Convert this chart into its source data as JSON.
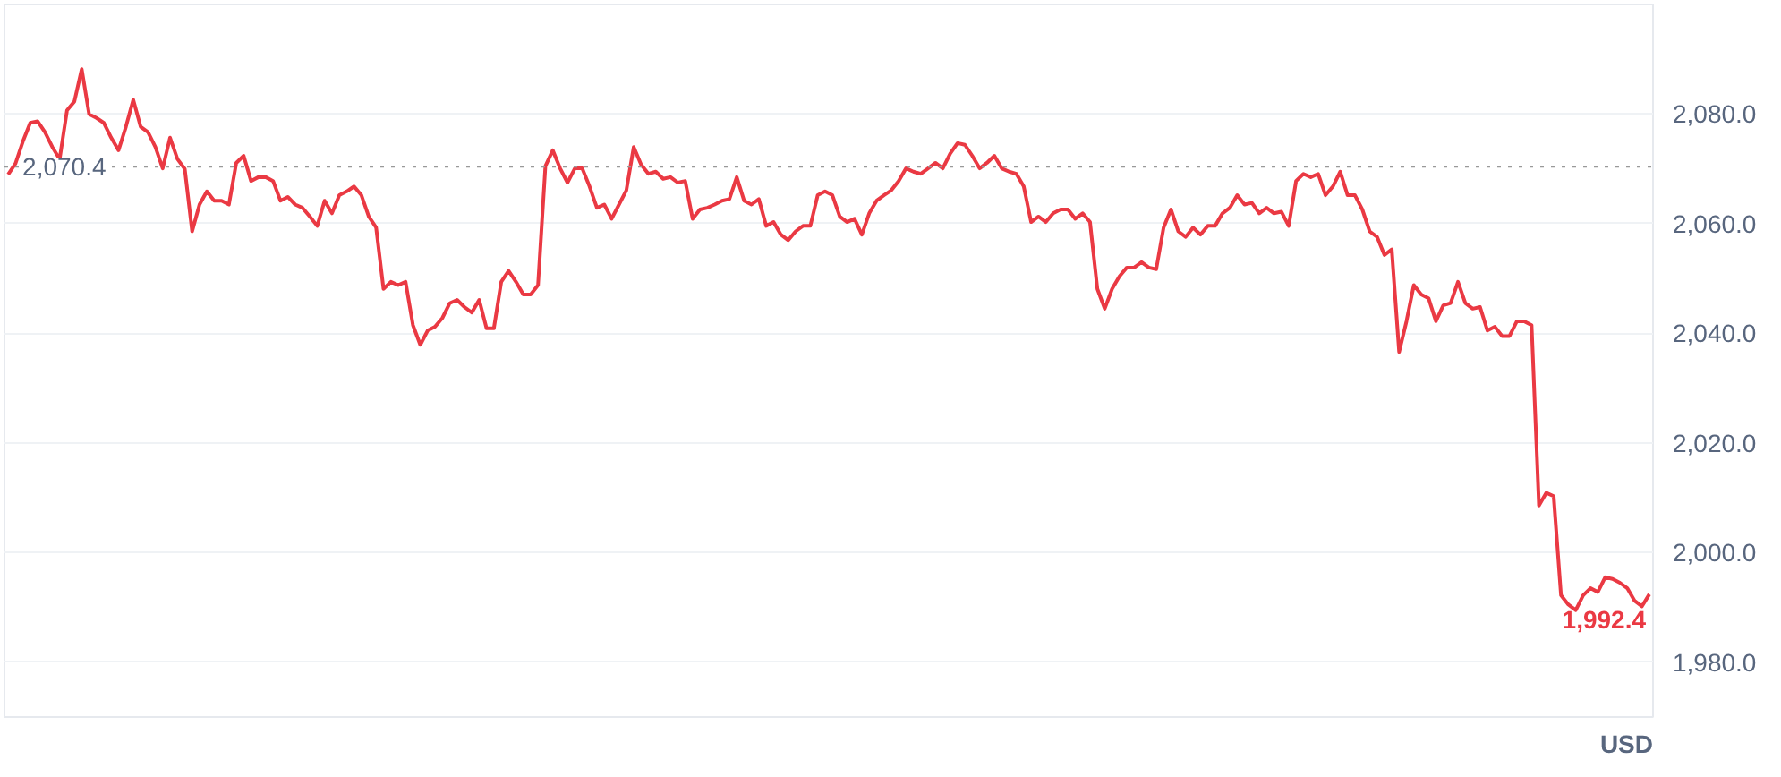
{
  "chart_data": {
    "type": "line",
    "categories": [
      null,
      null,
      null,
      null,
      null,
      null,
      null,
      null,
      null,
      null,
      null,
      null,
      null,
      null,
      null,
      null,
      null,
      null,
      null,
      null,
      null,
      null,
      null,
      null,
      null,
      null,
      null,
      null,
      null,
      null,
      null,
      null,
      null,
      null,
      null,
      null,
      null,
      null,
      null,
      null,
      null,
      null,
      null,
      null,
      null,
      null,
      null,
      null,
      null,
      null,
      null,
      null,
      null,
      null,
      null,
      null,
      null,
      null,
      null,
      null,
      null,
      null,
      null,
      null,
      null,
      null,
      null,
      null,
      null,
      null,
      null,
      null,
      null,
      null,
      null,
      null,
      null,
      null,
      null,
      null,
      null,
      null,
      null,
      null,
      null,
      null,
      null,
      null,
      null,
      null,
      null,
      null,
      null,
      null,
      null,
      null,
      null,
      null,
      null,
      null,
      null,
      null,
      null,
      null,
      null,
      null,
      null,
      null,
      null,
      null,
      null,
      null,
      null,
      null,
      null,
      null,
      null,
      null,
      null,
      null,
      null,
      null,
      null,
      null,
      null,
      null,
      null,
      null,
      null,
      null,
      null,
      null,
      null,
      null,
      null,
      null,
      null,
      null,
      null,
      null,
      null,
      null,
      null,
      null,
      null,
      null,
      null,
      null,
      null,
      null,
      null,
      null,
      null,
      null,
      null,
      null,
      null,
      null,
      null,
      null,
      null,
      null,
      null,
      null,
      null,
      null,
      null,
      null,
      null,
      null,
      null,
      null,
      null,
      null,
      null,
      null,
      null,
      null,
      null,
      null,
      null,
      null,
      null,
      null,
      null,
      null,
      null,
      null,
      null,
      null,
      null,
      null,
      null,
      null,
      null,
      null,
      null,
      null,
      null,
      null,
      null,
      null,
      null,
      null,
      null,
      null,
      null,
      null,
      null,
      null,
      null,
      null,
      null,
      null,
      null,
      null,
      null,
      null,
      null,
      null,
      null,
      null,
      null,
      null
    ],
    "series": [
      {
        "color": "#ea3943",
        "values": [
          2069,
          2071,
          2075,
          2078.4,
          2078.7,
          2076.7,
          2074,
          2071.8,
          2080.7,
          2082.3,
          2088.2,
          2080,
          2079.3,
          2078.4,
          2075.7,
          2073.4,
          2077.7,
          2082.6,
          2077.7,
          2076.7,
          2074,
          2070.1,
          2075.7,
          2071.8,
          2070,
          2058.6,
          2063.5,
          2065.9,
          2064.2,
          2064.2,
          2063.5,
          2071.1,
          2072.4,
          2067.8,
          2068.5,
          2068.5,
          2067.8,
          2064.2,
          2064.9,
          2063.5,
          2062.9,
          2061.3,
          2059.6,
          2064.2,
          2061.9,
          2065.2,
          2065.9,
          2066.8,
          2065.2,
          2061.3,
          2059.3,
          2048.1,
          2049.4,
          2048.8,
          2049.4,
          2041.5,
          2037.9,
          2040.5,
          2041.2,
          2042.8,
          2045.5,
          2046.1,
          2044.8,
          2043.8,
          2046.1,
          2040.9,
          2040.9,
          2049.4,
          2051.4,
          2049.4,
          2047.1,
          2047.1,
          2048.8,
          2070.5,
          2073.4,
          2070.1,
          2067.5,
          2070.1,
          2070.1,
          2066.8,
          2062.9,
          2063.5,
          2060.9,
          2063.5,
          2066.1,
          2074,
          2070.8,
          2069.1,
          2069.5,
          2068.2,
          2068.5,
          2067.5,
          2067.8,
          2060.9,
          2062.6,
          2062.9,
          2063.5,
          2064.2,
          2064.5,
          2068.5,
          2064.2,
          2063.5,
          2064.5,
          2059.6,
          2060.3,
          2058,
          2057,
          2058.6,
          2059.6,
          2059.6,
          2065.2,
          2065.9,
          2065.2,
          2061.3,
          2060.3,
          2060.9,
          2058,
          2061.9,
          2064.2,
          2065.2,
          2066.1,
          2067.8,
          2070.1,
          2069.5,
          2069.1,
          2070.1,
          2071.1,
          2070.1,
          2072.8,
          2074.7,
          2074.4,
          2072.4,
          2070.1,
          2071.1,
          2072.4,
          2070.1,
          2069.5,
          2069.1,
          2066.8,
          2060.3,
          2061.3,
          2060.3,
          2061.9,
          2062.6,
          2062.6,
          2060.9,
          2061.9,
          2060.3,
          2048.1,
          2044.5,
          2048.1,
          2050.4,
          2052,
          2052,
          2053,
          2052,
          2051.7,
          2059.3,
          2062.6,
          2058.6,
          2057.6,
          2059.3,
          2058,
          2059.6,
          2059.6,
          2061.9,
          2062.9,
          2065.2,
          2063.5,
          2063.8,
          2061.9,
          2062.9,
          2061.9,
          2062.2,
          2059.6,
          2067.8,
          2069.1,
          2068.5,
          2069.1,
          2065.2,
          2066.8,
          2069.5,
          2065.2,
          2065.2,
          2062.6,
          2058.6,
          2057.6,
          2054.3,
          2055.3,
          2036.6,
          2042.2,
          2048.8,
          2047.1,
          2046.4,
          2042.2,
          2045.1,
          2045.5,
          2049.4,
          2045.5,
          2044.5,
          2044.8,
          2040.5,
          2041.2,
          2039.5,
          2039.5,
          2042.2,
          2042.2,
          2041.5,
          2008.6,
          2010.9,
          2010.3,
          1992.2,
          1990.5,
          1989.5,
          1992.2,
          1993.5,
          1992.8,
          1995.5,
          1995.2,
          1994.5,
          1993.5,
          1991.2,
          1990.2,
          1992.4
        ]
      }
    ],
    "ylim": [
      1970,
      2100
    ],
    "yticks": [
      {
        "value": 1980,
        "label": "1,980.0"
      },
      {
        "value": 2000,
        "label": "2,000.0"
      },
      {
        "value": 2020,
        "label": "2,020.0"
      },
      {
        "value": 2040,
        "label": "2,040.0"
      },
      {
        "value": 2060,
        "label": "2,060.0"
      },
      {
        "value": 2080,
        "label": "2,080.0"
      }
    ],
    "ref_lines": [
      {
        "axis": "y",
        "value": 2070.4,
        "label": "2,070.4",
        "color": "#999999",
        "line_style": "dotted"
      }
    ],
    "annotations": [
      {
        "text": "1,992.4",
        "y": 1992.4
      },
      "USD"
    ],
    "grid": "y",
    "tick_labels": "y",
    "marker": "none",
    "line_style": "solid"
  }
}
